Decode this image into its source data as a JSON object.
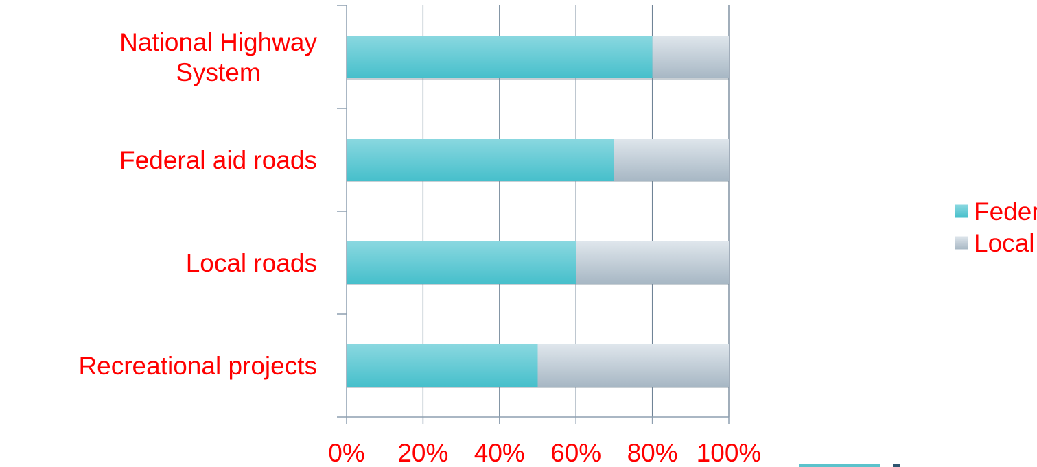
{
  "chart_data": {
    "type": "bar",
    "orientation": "horizontal",
    "stacked": "percent",
    "categories": [
      "National Highway System",
      "Federal aid roads",
      "Local roads",
      "Recreational projects"
    ],
    "category_lines": [
      [
        "National Highway",
        "System"
      ],
      [
        "Federal aid roads"
      ],
      [
        "Local roads"
      ],
      [
        "Recreational projects"
      ]
    ],
    "series": [
      {
        "name": "Federal Share",
        "values": [
          80,
          70,
          60,
          50
        ]
      },
      {
        "name": "Local Share",
        "values": [
          20,
          30,
          40,
          50
        ]
      }
    ],
    "xlim": [
      0,
      100
    ],
    "xticks": [
      0,
      20,
      40,
      60,
      80,
      100
    ],
    "xtick_labels": [
      "0%",
      "20%",
      "40%",
      "60%",
      "80%",
      "100%"
    ],
    "title": "",
    "xlabel": "",
    "ylabel": "",
    "grid": true,
    "legend_position": "right",
    "colors": {
      "federal_top": "#8ad8e0",
      "federal_bottom": "#46bfcb",
      "local_top": "#dfe6ec",
      "local_bottom": "#a7b7c4",
      "label_text": "#ff0000",
      "axis": "#8e9fb0",
      "grid": "#6f8396",
      "accent_teal": "#5bc3cc",
      "accent_navy": "#2e5570"
    }
  }
}
